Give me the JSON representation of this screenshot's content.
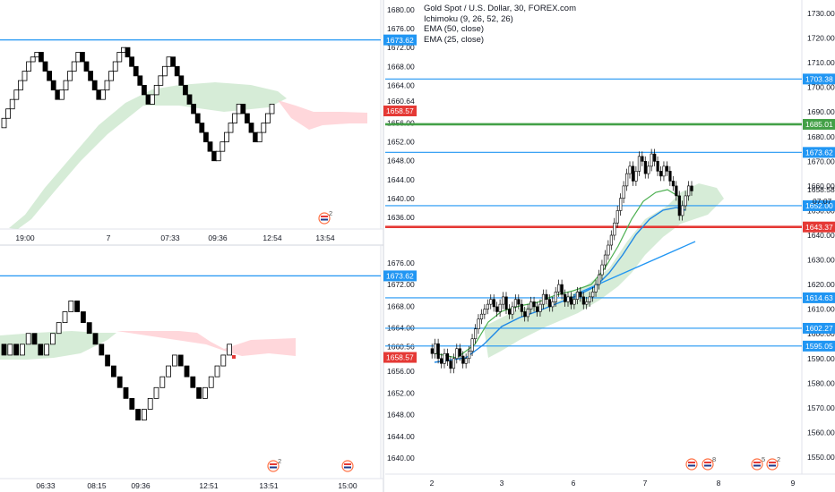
{
  "colors": {
    "up_candle": "#ffffff",
    "down_candle": "#000000",
    "blue_line": "#2196f3",
    "green_line": "#43a047",
    "red_line": "#e53935",
    "cloud_green": "#c8e6c9",
    "cloud_red": "#ffcdd2",
    "ema_fast": "#4caf50",
    "ema_slow": "#1e88e5",
    "price_badge": "#e53935"
  },
  "icons": {
    "event_flag": "us-flag-event-icon"
  },
  "top_left_chart": {
    "price_axis": [
      "1680.00",
      "1676.00",
      "1672.00",
      "1668.00",
      "1664.00",
      "1660.64",
      "1656.00",
      "1652.00",
      "1648.00",
      "1644.00",
      "1640.00",
      "1636.00"
    ],
    "h_line_label": "1673.62",
    "last_price_label": "1658.57",
    "time_axis": [
      "19:00",
      "7",
      "07:33",
      "09:36",
      "12:54",
      "13:54"
    ],
    "event_badge_count": "2"
  },
  "bottom_left_chart": {
    "price_axis": [
      "1676.00",
      "1672.00",
      "1668.00",
      "1664.00",
      "1660.56",
      "1656.00",
      "1652.00",
      "1648.00",
      "1644.00",
      "1640.00"
    ],
    "h_line_label": "1673.62",
    "last_price_label": "1658.57",
    "time_axis": [
      "06:33",
      "08:15",
      "09:36",
      "12:51",
      "13:51",
      "15:00"
    ],
    "event_badge_count": "2"
  },
  "right_chart": {
    "legend": {
      "title": "Gold Spot / U.S. Dollar, 30, FOREX.com",
      "indicators": [
        "Ichimoku (9, 26, 52, 26)",
        "EMA (50, close)",
        "EMA (25, close)"
      ]
    },
    "price_axis": [
      "1730.00",
      "1720.00",
      "1710.00",
      "1700.00",
      "1690.00",
      "1680.00",
      "1670.00",
      "1660.00",
      "1650.00",
      "1640.00",
      "1630.00",
      "1620.00",
      "1610.00",
      "1600.00",
      "1590.00",
      "1580.00",
      "1570.00",
      "1560.00",
      "1550.00"
    ],
    "levels": [
      {
        "label": "1703.38",
        "color": "#2196f3"
      },
      {
        "label": "1685.01",
        "color": "#43a047"
      },
      {
        "label": "1673.62",
        "color": "#2196f3"
      },
      {
        "label": "1652.00",
        "color": "#2196f3"
      },
      {
        "label": "1643.37",
        "color": "#e53935"
      },
      {
        "label": "1614.63",
        "color": "#2196f3"
      },
      {
        "label": "1602.27",
        "color": "#2196f3"
      },
      {
        "label": "1595.05",
        "color": "#2196f3"
      }
    ],
    "last_price": "1658.58",
    "countdown": "07:07",
    "time_axis": [
      "2",
      "3",
      "6",
      "7",
      "8",
      "9"
    ],
    "event_badges": [
      "8",
      "5",
      "2"
    ]
  }
}
